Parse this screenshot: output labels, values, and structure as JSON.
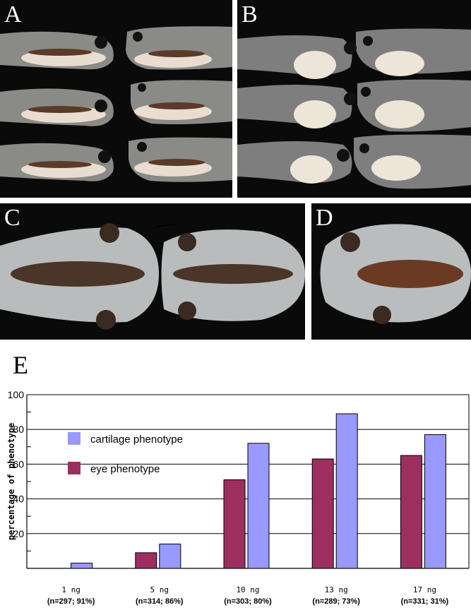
{
  "panels": {
    "a": {
      "label": "A"
    },
    "b": {
      "label": "B"
    },
    "c": {
      "label": "C"
    },
    "d": {
      "label": "D"
    },
    "e": {
      "label": "E"
    }
  },
  "chart_data": {
    "type": "bar",
    "ylabel": "percentage of phenotype",
    "xlabel": "",
    "ylim": [
      0,
      100
    ],
    "yticks": [
      20,
      40,
      60,
      80,
      100
    ],
    "categories": [
      "1 ng",
      "5 ng",
      "10 ng",
      "13 ng",
      "17 ng"
    ],
    "category_notes": [
      "(n=297; 91%)",
      "(n=314; 86%)",
      "(n=303; 80%)",
      "(n=289; 73%)",
      "(n=331; 31%)"
    ],
    "series": [
      {
        "name": "eye phenotype",
        "color": "#9c2f60",
        "values": [
          0,
          9,
          51,
          63,
          65
        ]
      },
      {
        "name": "cartilage phenotype",
        "color": "#9999ff",
        "values": [
          3,
          14,
          72,
          89,
          77
        ]
      }
    ],
    "legend": "top-left",
    "grid": true
  }
}
